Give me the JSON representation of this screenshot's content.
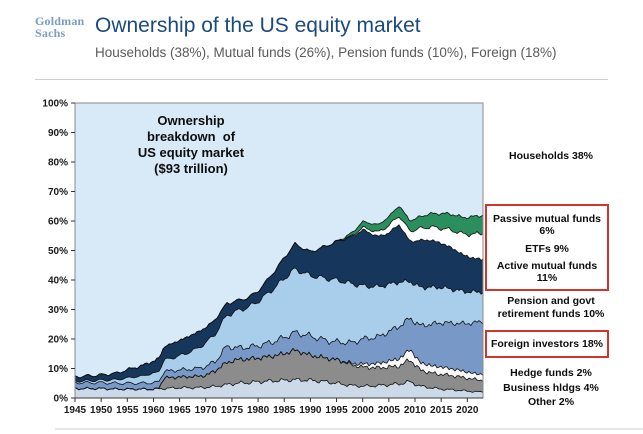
{
  "header": {
    "logo_line1": "Goldman",
    "logo_line2": "Sachs",
    "title": "Ownership of the US equity market",
    "subtitle": "Households (38%), Mutual funds (26%), Pension funds (10%), Foreign (18%)"
  },
  "annotation": {
    "text": "Ownership\nbreakdown  of\nUS equity market\n($93 trillion)"
  },
  "right_labels": {
    "households": "Households 38%",
    "passive": "Passive mutual funds 6%",
    "etfs": "ETFs 9%",
    "active": "Active mutual funds 11%",
    "pension": "Pension and govt retirement funds 10%",
    "foreign": "Foreign investors 18%",
    "hedge": "Hedge funds 2%",
    "business": "Business hldgs 4%",
    "other": "Other 2%"
  },
  "colors": {
    "accent_red_box": "#d2352b",
    "title_blue": "#1b4a7e",
    "logo_blue": "#7d9cc4",
    "subtitle_gray": "#5a5a5a",
    "plot_border": "#8a8a8a",
    "band_outline": "#101010"
  },
  "chart_data": {
    "type": "area",
    "stacked": true,
    "title": "Ownership breakdown of US equity market ($93 trillion)",
    "xlabel": "",
    "ylabel": "",
    "ylim": [
      0,
      100
    ],
    "grid": false,
    "plot_bg": "#d8e9f8",
    "implied_remainder": {
      "name": "Households",
      "share_2023": 38,
      "color": "#d8e9f8",
      "note": "background area above stack up to 100%"
    },
    "x": [
      1945,
      1950,
      1953,
      1955,
      1958,
      1960,
      1961,
      1962,
      1965,
      1968,
      1970,
      1972,
      1974,
      1976,
      1978,
      1980,
      1983,
      1985,
      1987,
      1990,
      1993,
      1995,
      1998,
      2000,
      2003,
      2005,
      2007,
      2009,
      2011,
      2013,
      2015,
      2017,
      2019,
      2021,
      2023
    ],
    "xticks": [
      1945,
      1950,
      1955,
      1960,
      1965,
      1970,
      1975,
      1980,
      1985,
      1990,
      1995,
      2000,
      2005,
      2010,
      2015,
      2020
    ],
    "yticks": [
      0,
      10,
      20,
      30,
      40,
      50,
      60,
      70,
      80,
      90,
      100
    ],
    "series": [
      {
        "id": "other",
        "name": "Other",
        "share_2023": "2%",
        "color": "#ccd9e8",
        "values": [
          3.2,
          3.2,
          3.0,
          3.0,
          3.0,
          3.0,
          3.1,
          3.2,
          3.5,
          3.5,
          3.6,
          4.0,
          4.5,
          5.0,
          5.2,
          5.5,
          5.8,
          6.0,
          6.2,
          6.0,
          5.5,
          5.0,
          4.2,
          4.0,
          4.2,
          4.5,
          4.8,
          5.5,
          4.0,
          3.5,
          3.0,
          2.8,
          2.5,
          2.2,
          2.0
        ]
      },
      {
        "id": "business-holdings",
        "name": "Business hldgs",
        "share_2023": "4%",
        "color": "#8c8c8c",
        "values": [
          0,
          0,
          0,
          0,
          0,
          0,
          0,
          3.6,
          3.6,
          3.8,
          4.0,
          5.5,
          7.5,
          8.0,
          8.0,
          8.0,
          8.5,
          9.0,
          10.0,
          8.5,
          8.0,
          8.0,
          7.0,
          6.5,
          6.0,
          6.0,
          6.0,
          7.5,
          5.5,
          5.0,
          5.0,
          4.8,
          4.5,
          4.2,
          4.0
        ]
      },
      {
        "id": "hedge-funds",
        "name": "Hedge funds",
        "share_2023": "2%",
        "color": "#f7f7f7",
        "values": [
          0,
          0,
          0,
          0,
          0,
          0,
          0,
          0,
          0,
          0,
          0,
          0,
          0,
          0,
          0,
          0,
          0,
          0,
          0,
          0,
          0,
          0,
          0.5,
          1.0,
          1.5,
          2.0,
          2.5,
          3.5,
          2.5,
          2.5,
          2.5,
          2.3,
          2.2,
          2.0,
          2.0
        ]
      },
      {
        "id": "foreign-investors",
        "name": "Foreign investors",
        "share_2023": "18%",
        "color": "#7899c8",
        "values": [
          2.0,
          2.0,
          2.0,
          2.0,
          2.0,
          2.2,
          2.2,
          2.2,
          2.4,
          2.6,
          3.0,
          3.2,
          5.5,
          4.0,
          4.0,
          4.2,
          4.8,
          5.5,
          6.0,
          6.5,
          6.0,
          6.0,
          7.0,
          8.5,
          9.0,
          10.0,
          11.0,
          10.5,
          12.5,
          14.0,
          15.0,
          15.5,
          16.0,
          17.0,
          18.0
        ]
      },
      {
        "id": "pension-govt-retirement",
        "name": "Pension and govt retirement funds",
        "share_2023": "10%",
        "color": "#a9ceec",
        "values": [
          0.5,
          0.8,
          1.2,
          1.8,
          2.5,
          3.2,
          3.5,
          3.8,
          4.8,
          6.5,
          8.0,
          9.5,
          10.5,
          12.5,
          13.5,
          15.0,
          18.0,
          20.0,
          21.5,
          20.5,
          21.0,
          21.0,
          20.0,
          18.0,
          17.0,
          16.0,
          15.0,
          12.5,
          13.0,
          12.5,
          12.0,
          11.5,
          11.0,
          10.5,
          10.0
        ]
      },
      {
        "id": "active-mutual-funds",
        "name": "Active mutual funds",
        "share_2023": "11%",
        "color": "#16365c",
        "values": [
          1.5,
          1.8,
          2.2,
          2.8,
          3.5,
          4.2,
          4.3,
          4.5,
          5.2,
          5.5,
          5.2,
          4.8,
          4.0,
          3.5,
          3.2,
          3.5,
          5.5,
          7.0,
          8.5,
          8.0,
          11.0,
          13.0,
          16.0,
          19.0,
          17.0,
          17.5,
          19.5,
          13.5,
          16.0,
          16.0,
          15.0,
          14.0,
          12.5,
          11.5,
          11.0
        ]
      },
      {
        "id": "etfs",
        "name": "ETFs",
        "share_2023": "9%",
        "color": "#ffffff",
        "values": [
          0,
          0,
          0,
          0,
          0,
          0,
          0,
          0,
          0,
          0,
          0,
          0,
          0,
          0,
          0,
          0,
          0,
          0,
          0,
          0,
          0,
          0,
          0.3,
          0.8,
          1.5,
          2.5,
          3.0,
          3.5,
          4.0,
          4.5,
          5.0,
          6.0,
          7.0,
          8.0,
          9.0
        ]
      },
      {
        "id": "passive-mutual-funds",
        "name": "Passive mutual funds",
        "share_2023": "6%",
        "color": "#2a8f5c",
        "values": [
          0,
          0,
          0,
          0,
          0,
          0,
          0,
          0,
          0,
          0,
          0,
          0,
          0,
          0,
          0,
          0,
          0,
          0,
          0,
          0,
          0,
          0,
          1.0,
          2.0,
          2.5,
          3.0,
          3.5,
          3.5,
          4.0,
          4.5,
          5.0,
          5.5,
          5.5,
          6.0,
          6.0
        ]
      }
    ]
  }
}
